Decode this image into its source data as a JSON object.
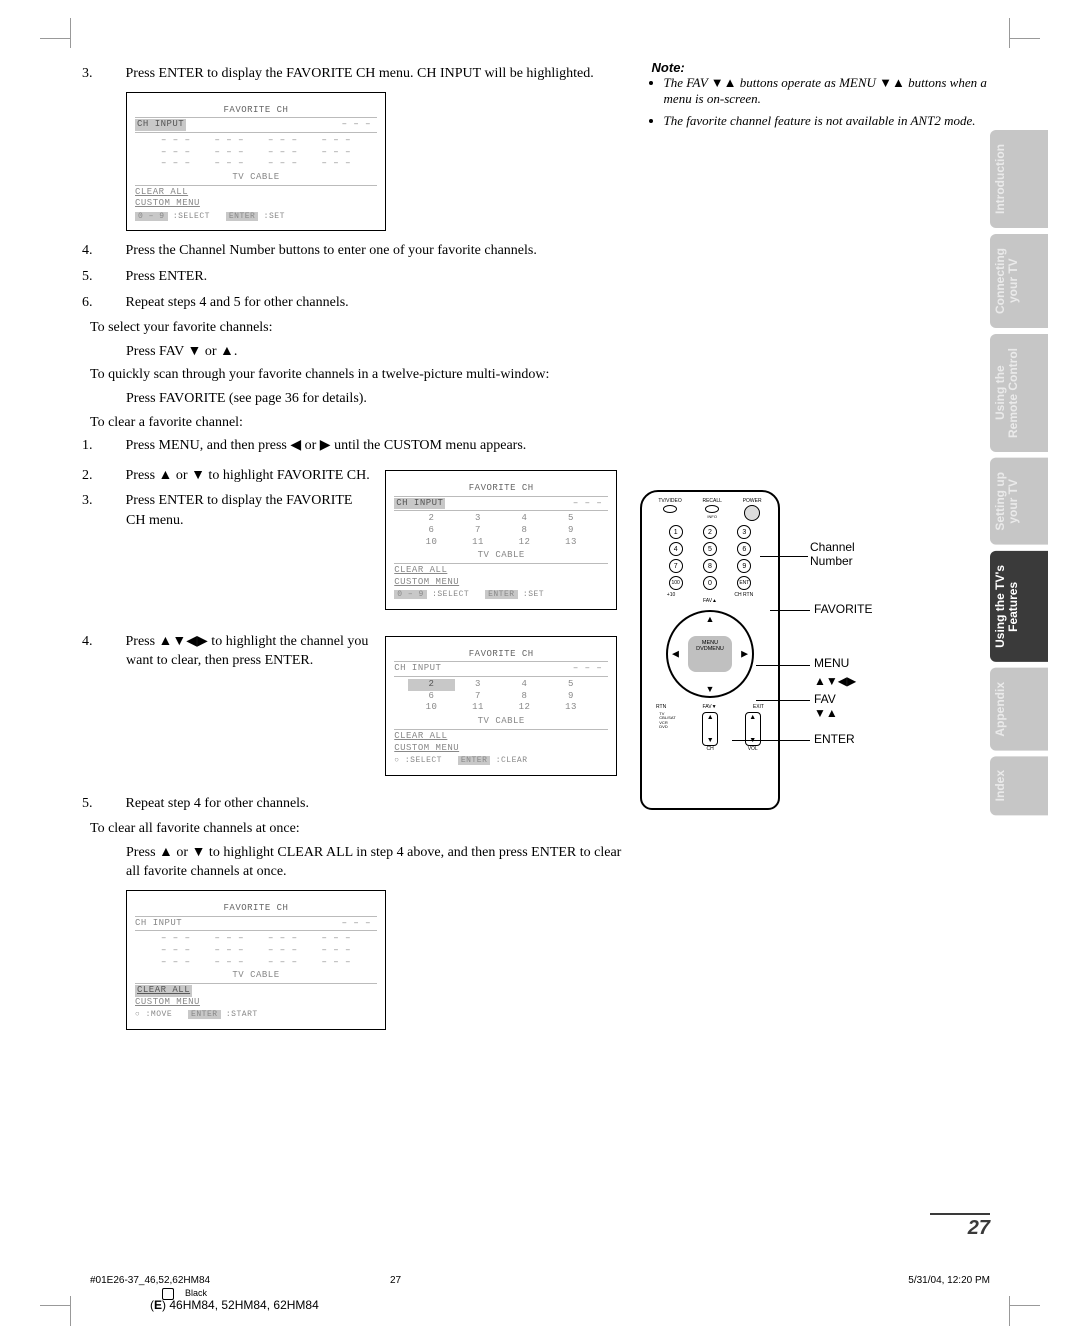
{
  "page_number": "27",
  "side_tabs": [
    {
      "label": "Introduction",
      "active": false
    },
    {
      "label": "Connecting\nyour TV",
      "active": false
    },
    {
      "label": "Using the\nRemote Control",
      "active": false
    },
    {
      "label": "Setting up\nyour TV",
      "active": false
    },
    {
      "label": "Using the TV's\nFeatures",
      "active": true
    },
    {
      "label": "Appendix",
      "active": false
    },
    {
      "label": "Index",
      "active": false
    }
  ],
  "steps_a": {
    "s3": "Press ENTER to display the FAVORITE CH menu. CH INPUT will be highlighted.",
    "s4": "Press the Channel Number buttons to enter one of your favorite channels.",
    "s5": "Press ENTER.",
    "s6": "Repeat steps 4 and 5 for other channels."
  },
  "section_select": "To select your favorite channels:",
  "select_instr": "Press FAV ▼ or ▲.",
  "section_scan": "To quickly scan through your favorite channels in a twelve-picture multi-window:",
  "scan_instr": "Press FAVORITE (see page 36 for details).",
  "section_clear": "To clear a favorite channel:",
  "clear_steps": {
    "s1": "Press MENU, and then press ◀ or ▶ until the CUSTOM menu appears.",
    "s2": "Press ▲ or ▼ to highlight FAVORITE CH.",
    "s3": "Press ENTER to display the FAVORITE CH menu.",
    "s4": "Press ▲▼◀▶ to highlight the channel you want to clear, then press ENTER.",
    "s5": "Repeat step 4 for other channels."
  },
  "section_clear_all": "To clear all favorite channels at once:",
  "clear_all_instr": "Press ▲ or ▼ to highlight CLEAR ALL in step 4 above, and then press ENTER to clear all favorite channels at once.",
  "note_title": "Note:",
  "notes": [
    "The FAV ▼▲ buttons operate as MENU ▼▲ buttons when a menu is on-screen.",
    "The favorite channel feature is not available in ANT2 mode."
  ],
  "osd": {
    "title": "FAVORITE CH",
    "ch_input": "CH INPUT",
    "placeholder": "– – –",
    "tv_cable": "TV CABLE",
    "clear_all": "CLEAR ALL",
    "custom_menu": "CUSTOM MENU",
    "select": ":SELECT",
    "set": ":SET",
    "clear": ":CLEAR",
    "move": ":MOVE",
    "start": ":START",
    "enter": "ENTER",
    "numbers_row1": [
      "2",
      "3",
      "4",
      "5"
    ],
    "numbers_row2": [
      "6",
      "7",
      "8",
      "9"
    ],
    "numbers_row3": [
      "10",
      "11",
      "12",
      "13"
    ],
    "key09": "0 – 9",
    "bullet": "●",
    "circle": "○"
  },
  "remote": {
    "top": [
      "TV/VIDEO",
      "RECALL",
      "POWER"
    ],
    "info": "INFO",
    "plus10": "+10",
    "chrtn": "CH RTN",
    "ent": "ENT",
    "fav_up": "FAV▲",
    "fav_down": "FAV▼",
    "menu": "MENU",
    "dvdmenu": "DVDMENU",
    "exit": "EXIT",
    "ch": "CH",
    "vol": "VOL",
    "device_labels": "TV\nCBL/SAT\nVCR\nDVD",
    "callouts": {
      "channel_number": "Channel\nNumber",
      "favorite": "FAVORITE",
      "menu": "MENU",
      "arrows": "▲▼◀▶",
      "fav": "FAV ▼▲",
      "enter": "ENTER"
    }
  },
  "footer": {
    "file": "#01E26-37_46,52,62HM84",
    "page": "27",
    "date": "5/31/04, 12:20 PM",
    "black": "Black",
    "model": "(E) 46HM84, 52HM84, 62HM84"
  },
  "colors": {
    "tab_inactive_bg": "#c6c6c6",
    "tab_inactive_fg": "#eaeaea",
    "tab_active_bg": "#3a3a3a",
    "tab_active_fg": "#ffffff",
    "osd_text": "#888888",
    "osd_highlight": "#c8c8c8"
  }
}
